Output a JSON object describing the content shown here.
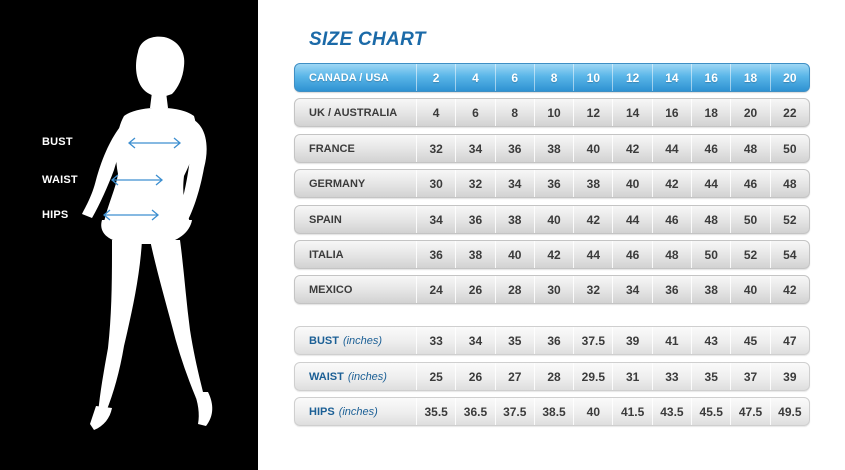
{
  "title": "SIZE CHART",
  "measures": {
    "bust": "BUST",
    "waist": "WAIST",
    "hips": "HIPS"
  },
  "header_row": {
    "label": "CANADA / USA",
    "values": [
      "2",
      "4",
      "6",
      "8",
      "10",
      "12",
      "14",
      "16",
      "18",
      "20"
    ]
  },
  "country_rows": [
    {
      "label": "UK / AUSTRALIA",
      "values": [
        "4",
        "6",
        "8",
        "10",
        "12",
        "14",
        "16",
        "18",
        "20",
        "22"
      ]
    },
    {
      "label": "FRANCE",
      "values": [
        "32",
        "34",
        "36",
        "38",
        "40",
        "42",
        "44",
        "46",
        "48",
        "50"
      ]
    },
    {
      "label": "GERMANY",
      "values": [
        "30",
        "32",
        "34",
        "36",
        "38",
        "40",
        "42",
        "44",
        "46",
        "48"
      ]
    },
    {
      "label": "SPAIN",
      "values": [
        "34",
        "36",
        "38",
        "40",
        "42",
        "44",
        "46",
        "48",
        "50",
        "52"
      ]
    },
    {
      "label": "ITALIA",
      "values": [
        "36",
        "38",
        "40",
        "42",
        "44",
        "46",
        "48",
        "50",
        "52",
        "54"
      ]
    },
    {
      "label": "MEXICO",
      "values": [
        "24",
        "26",
        "28",
        "30",
        "32",
        "34",
        "36",
        "38",
        "40",
        "42"
      ]
    }
  ],
  "measure_rows": [
    {
      "label": "BUST",
      "unit": "(inches)",
      "values": [
        "33",
        "34",
        "35",
        "36",
        "37.5",
        "39",
        "41",
        "43",
        "45",
        "47"
      ]
    },
    {
      "label": "WAIST",
      "unit": "(inches)",
      "values": [
        "25",
        "26",
        "27",
        "28",
        "29.5",
        "31",
        "33",
        "35",
        "37",
        "39"
      ]
    },
    {
      "label": "HIPS",
      "unit": "(inches)",
      "values": [
        "35.5",
        "36.5",
        "37.5",
        "38.5",
        "40",
        "41.5",
        "43.5",
        "45.5",
        "47.5",
        "49.5"
      ]
    }
  ],
  "colors": {
    "accent": "#1b6aa8",
    "header_blue": "#4aa9e0",
    "arrow": "#3d8fd0"
  }
}
